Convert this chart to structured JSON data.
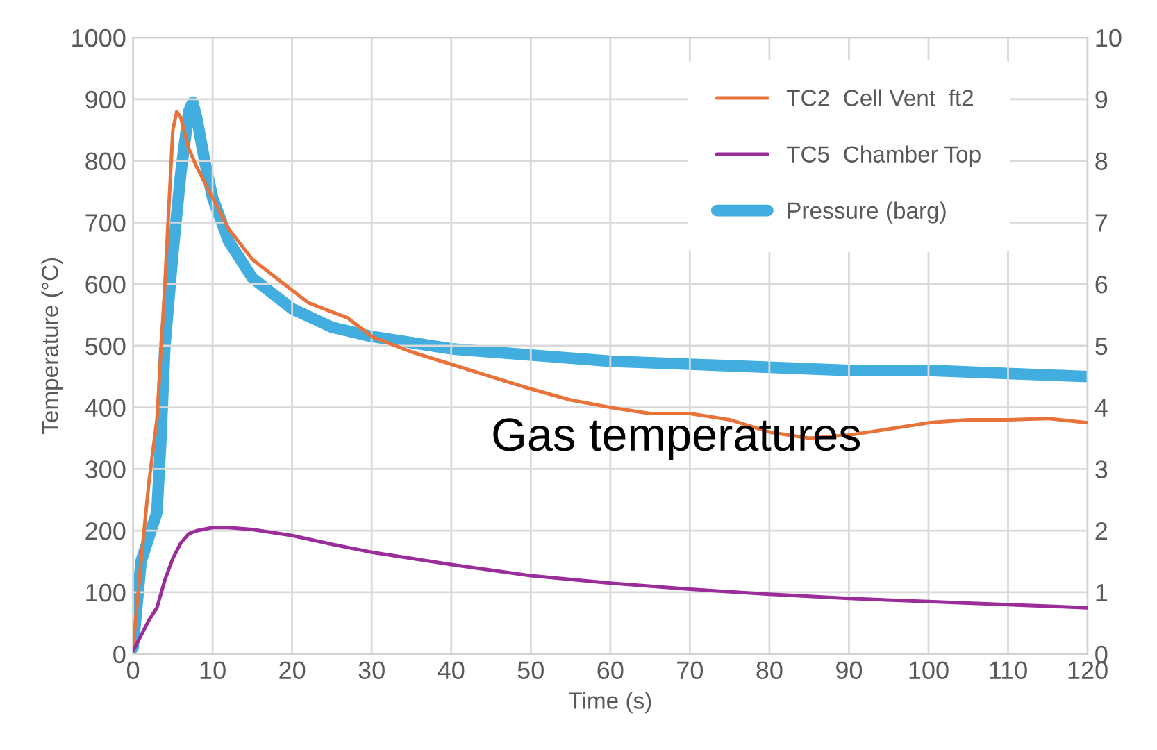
{
  "chart_data": {
    "type": "line",
    "xlabel": "Time (s)",
    "ylabel": "Temperature (°C)",
    "xlim": [
      0,
      120
    ],
    "xticks": [
      0,
      10,
      20,
      30,
      40,
      50,
      60,
      70,
      80,
      90,
      100,
      110,
      120
    ],
    "ylim": [
      0,
      1000
    ],
    "yticks": [
      0,
      100,
      200,
      300,
      400,
      500,
      600,
      700,
      800,
      900,
      1000
    ],
    "y2lim": [
      0,
      10
    ],
    "y2ticks": [
      0,
      1,
      2,
      3,
      4,
      5,
      6,
      7,
      8,
      9,
      10
    ],
    "grid": true,
    "legend": "top right",
    "marker": "none",
    "line_style": "solid",
    "annotations": [
      "Gas temperatures"
    ],
    "series": [
      {
        "name": "TC2  Cell Vent  ft2",
        "color": "#e8733a",
        "x": [
          0,
          1,
          2,
          3,
          4,
          5,
          5.5,
          6,
          7,
          8,
          10,
          12,
          15,
          20,
          22,
          25,
          27,
          30,
          35,
          40,
          45,
          50,
          55,
          60,
          65,
          70,
          75,
          80,
          85,
          90,
          95,
          100,
          105,
          110,
          115,
          120
        ],
        "values": [
          10,
          150,
          280,
          380,
          600,
          850,
          880,
          870,
          820,
          790,
          740,
          690,
          640,
          590,
          570,
          555,
          545,
          515,
          490,
          470,
          450,
          430,
          412,
          400,
          390,
          390,
          380,
          360,
          350,
          355,
          365,
          375,
          380,
          380,
          382,
          375
        ]
      },
      {
        "name": "TC5  Chamber Top",
        "color": "#9b2d9b",
        "x": [
          0,
          1,
          2,
          3,
          4,
          5,
          6,
          7,
          8,
          10,
          12,
          15,
          20,
          25,
          30,
          40,
          50,
          60,
          70,
          80,
          90,
          100,
          110,
          120
        ],
        "values": [
          5,
          30,
          55,
          75,
          120,
          155,
          180,
          195,
          200,
          205,
          205,
          202,
          192,
          178,
          165,
          145,
          127,
          115,
          105,
          97,
          90,
          85,
          80,
          75
        ]
      },
      {
        "name": "Pressure (barg)",
        "color": "#41aedf",
        "axis": "y2",
        "x": [
          0,
          0.5,
          1,
          2,
          3,
          3.5,
          4,
          5,
          6,
          7,
          7.5,
          8,
          9,
          10,
          12,
          15,
          20,
          25,
          30,
          40,
          50,
          60,
          70,
          80,
          90,
          100,
          110,
          120
        ],
        "values": [
          0.1,
          0.8,
          1.5,
          1.9,
          2.3,
          3.5,
          5.0,
          6.5,
          7.8,
          8.8,
          8.95,
          8.7,
          8.0,
          7.4,
          6.7,
          6.1,
          5.6,
          5.3,
          5.15,
          4.95,
          4.85,
          4.75,
          4.7,
          4.65,
          4.6,
          4.6,
          4.55,
          4.5
        ]
      }
    ]
  }
}
